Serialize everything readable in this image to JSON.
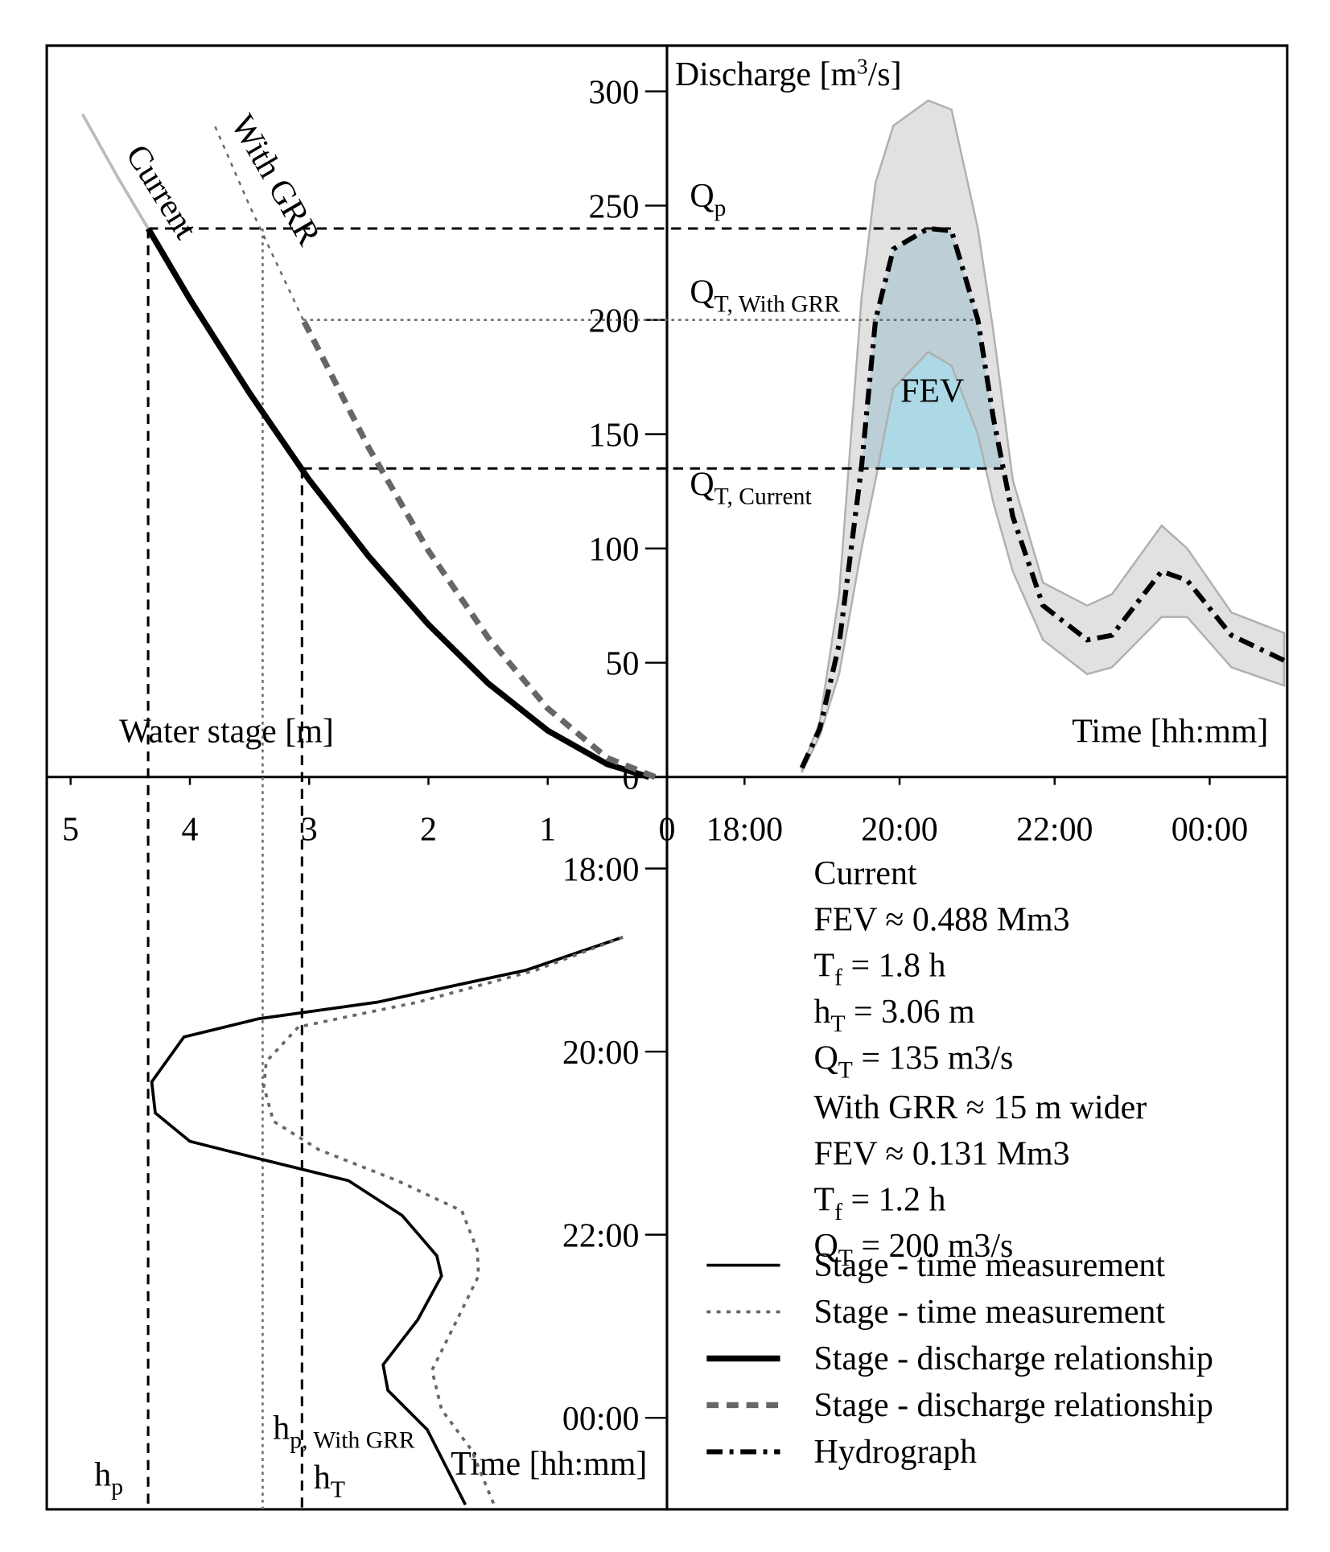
{
  "chart_data": [
    {
      "type": "line",
      "xlabel": "Water stage [m]",
      "ylabel": {
        "main": "Discharge [m",
        "sup": "3",
        "tail": "/s]"
      },
      "xlim": [
        5.2,
        0
      ],
      "xticks": [
        5,
        4,
        3,
        2,
        1,
        0
      ],
      "ylim": [
        0,
        320
      ],
      "yticks": [
        0,
        50,
        100,
        150,
        200,
        250,
        300
      ],
      "series": [
        {
          "name": "Current",
          "color": "#000000",
          "width": 6,
          "style": "solid",
          "x": [
            0.15,
            0.5,
            1,
            1.5,
            2,
            2.5,
            3,
            3.5,
            4,
            4.35
          ],
          "values": [
            0,
            5.6,
            20.3,
            41,
            66.7,
            96.5,
            130,
            168,
            209,
            240
          ]
        },
        {
          "name": "With GRR",
          "color": "#666666",
          "width": 6,
          "style": "dashed",
          "x": [
            0.1,
            0.5,
            1,
            1.5,
            2,
            2.5,
            3,
            3.05
          ],
          "values": [
            0,
            8.3,
            30,
            61,
            99,
            144,
            195,
            200
          ]
        },
        {
          "color": "#bbbbbb",
          "width": 3,
          "style": "solid",
          "x": [
            4.35,
            4.6,
            4.9
          ],
          "values": [
            240,
            262,
            290
          ]
        },
        {
          "color": "#666666",
          "width": 2,
          "style": "dotted",
          "x": [
            3.05,
            3.5,
            3.8
          ],
          "values": [
            200,
            250,
            286
          ]
        }
      ]
    },
    {
      "type": "line",
      "xlabel": "Time [hh:mm]",
      "xlim": [
        17,
        25
      ],
      "xticks": [
        {
          "value": 18,
          "label": "18:00"
        },
        {
          "value": 20,
          "label": "20:00"
        },
        {
          "value": 22,
          "label": "22:00"
        },
        {
          "value": 24,
          "label": "00:00"
        }
      ],
      "ylim": [
        0,
        320
      ],
      "fill_label": "FEV",
      "fill_color": "#add8e6",
      "band_color": "#c8c8c8",
      "series": [
        {
          "name": "Hydrograph",
          "color": "#000000",
          "width": 5,
          "style": "dashdot",
          "x": [
            18.74,
            18.97,
            19.22,
            19.51,
            19.69,
            19.92,
            20.37,
            20.67,
            21.01,
            21.21,
            21.46,
            21.85,
            22.42,
            22.74,
            23.38,
            23.71,
            24.28,
            24.96
          ],
          "values": [
            4,
            21,
            58,
            136,
            200,
            231,
            240,
            239,
            200,
            157,
            114,
            75,
            60,
            62,
            90,
            86,
            62,
            51
          ],
          "upper": [
            4,
            24,
            80,
            210,
            260,
            285,
            296,
            292,
            240,
            195,
            130,
            85,
            75,
            80,
            110,
            100,
            72,
            63
          ],
          "lower": [
            2,
            18,
            45,
            100,
            130,
            170,
            186,
            180,
            150,
            120,
            90,
            60,
            45,
            48,
            70,
            70,
            48,
            40
          ]
        }
      ]
    },
    {
      "type": "line",
      "ylabel": "Time [hh:mm]",
      "xlim": [
        5.2,
        0
      ],
      "ylim": [
        17,
        25
      ],
      "yticks": [
        {
          "value": 18,
          "label": "18:00"
        },
        {
          "value": 20,
          "label": "20:00"
        },
        {
          "value": 22,
          "label": "22:00"
        },
        {
          "value": 24,
          "label": "00:00"
        }
      ],
      "series": [
        {
          "name": "Stage - time measurement",
          "color": "#000000",
          "width": 3,
          "style": "solid",
          "x": [
            0.37,
            1.18,
            2.43,
            3.42,
            4.05,
            4.32,
            4.29,
            4.0,
            3.42,
            2.67,
            2.22,
            1.93,
            1.89,
            2.09,
            2.38,
            2.34,
            2.01,
            1.69
          ],
          "values": [
            18.75,
            19.11,
            19.46,
            19.64,
            19.84,
            20.33,
            20.67,
            20.98,
            21.17,
            21.41,
            21.79,
            22.23,
            22.45,
            22.93,
            23.42,
            23.7,
            24.13,
            24.95
          ]
        },
        {
          "name": "Stage - time measurement",
          "color": "#666666",
          "width": 3,
          "style": "dotted",
          "x": [
            0.37,
            1.1,
            2.09,
            3.09,
            3.36,
            3.38,
            3.3,
            2.92,
            2.26,
            1.72,
            1.59,
            1.58,
            1.76,
            1.97,
            1.89,
            1.64,
            1.45
          ],
          "values": [
            18.75,
            19.11,
            19.46,
            19.73,
            20.11,
            20.38,
            20.76,
            21.07,
            21.41,
            21.74,
            22.17,
            22.45,
            22.93,
            23.48,
            23.91,
            24.35,
            24.95
          ]
        }
      ]
    }
  ],
  "q_lines": [
    {
      "label": {
        "main": "Q",
        "sub": "p"
      },
      "q": 240,
      "h": 4.35,
      "style": "dashed",
      "color": "#000000"
    },
    {
      "label": {
        "main": "Q",
        "sub": "T, With GRR"
      },
      "q": 200,
      "h": 3.05,
      "style": "dotted",
      "color": "#666666"
    },
    {
      "label": {
        "main": "Q",
        "sub": "T, Current"
      },
      "q": 135,
      "h": 3.06,
      "style": "dashed",
      "color": "#000000"
    }
  ],
  "h_lines": [
    {
      "label": {
        "main": "h",
        "sub": "p"
      },
      "h": 4.35,
      "q": 240,
      "style": "dashed",
      "color": "#000000"
    },
    {
      "label": {
        "main": "h",
        "sub": "p, With GRR"
      },
      "h": 3.39,
      "q": 240,
      "style": "dotted",
      "color": "#666666"
    },
    {
      "label": {
        "main": "h",
        "sub": "T"
      },
      "h": 3.06,
      "q": 135,
      "style": "dashed",
      "color": "#000000"
    }
  ],
  "summary": [
    {
      "color": "#000000",
      "lines": [
        {
          "main": "Current"
        },
        {
          "main": "FEV ≈ 0.488 Mm3"
        },
        {
          "main": "T",
          "sub": "f",
          "tail": " = 1.8 h"
        },
        {
          "main": "h",
          "sub": "T",
          "tail": " = 3.06 m"
        },
        {
          "main": "Q",
          "sub": "T",
          "tail": " = 135 m3/s"
        }
      ]
    },
    {
      "color": "#777777",
      "lines": [
        {
          "main": "With GRR ≈ 15 m wider"
        },
        {
          "main": "FEV ≈ 0.131 Mm3"
        },
        {
          "main": "T",
          "sub": "f",
          "tail": " = 1.2 h"
        },
        {
          "main": "Q",
          "sub": "T",
          "tail": " = 200 m3/s"
        }
      ]
    }
  ],
  "legend": [
    {
      "label": "Stage - time measurement",
      "color": "#000000",
      "style": "solid",
      "width": 3
    },
    {
      "label": "Stage - time measurement",
      "color": "#666666",
      "style": "dotted",
      "width": 3
    },
    {
      "label": "Stage - discharge relationship",
      "color": "#000000",
      "style": "solid",
      "width": 6
    },
    {
      "label": "Stage - discharge relationship",
      "color": "#666666",
      "style": "dashed",
      "width": 6
    },
    {
      "label": "Hydrograph",
      "color": "#000000",
      "style": "dashdot",
      "width": 5
    }
  ]
}
